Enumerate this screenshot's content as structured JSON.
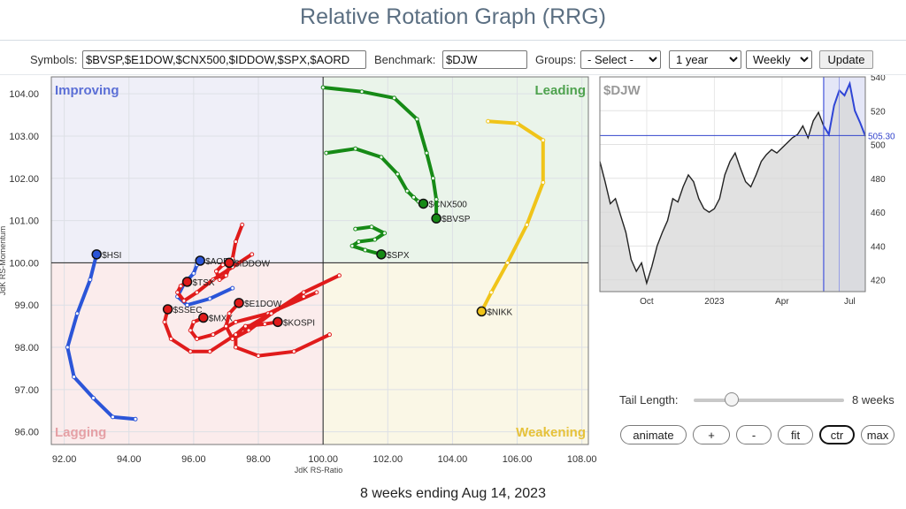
{
  "title": "Relative Rotation Graph (RRG)",
  "controls": {
    "symbols_label": "Symbols:",
    "symbols_value": "$BVSP,$E1DOW,$CNX500,$IDDOW,$SPX,$AORD",
    "benchmark_label": "Benchmark:",
    "benchmark_value": "$DJW",
    "groups_label": "Groups:",
    "groups_value": "- Select -",
    "period_value": "1 year",
    "frequency_value": "Weekly",
    "update_label": "Update"
  },
  "quadrants": {
    "improving": "Improving",
    "leading": "Leading",
    "lagging": "Lagging",
    "weakening": "Weakening"
  },
  "colors": {
    "improving": "#5b6fd6",
    "leading": "#4ea24e",
    "lagging": "#e5a0a5",
    "weakening": "#e6c23a",
    "green": "#168a16",
    "red": "#e01b1b",
    "blue": "#2b55d8",
    "yellow": "#f0c419"
  },
  "chart_data": [
    {
      "type": "scatter",
      "xlabel": "JdK RS-Ratio",
      "ylabel": "JdK RS-Momentum",
      "xlim": [
        91.6,
        108.2
      ],
      "ylim": [
        95.7,
        104.4
      ],
      "xticks": [
        "92.00",
        "94.00",
        "96.00",
        "98.00",
        "100.00",
        "102.00",
        "104.00",
        "106.00",
        "108.00"
      ],
      "yticks": [
        "96.00",
        "97.00",
        "98.00",
        "99.00",
        "100.00",
        "101.00",
        "102.00",
        "103.00",
        "104.00"
      ],
      "grid": true,
      "series": [
        {
          "name": "$HSI",
          "color": "blue",
          "points": [
            [
              94.2,
              96.3
            ],
            [
              93.5,
              96.35
            ],
            [
              92.9,
              96.8
            ],
            [
              92.3,
              97.3
            ],
            [
              92.1,
              98.0
            ],
            [
              92.4,
              98.8
            ],
            [
              92.8,
              99.6
            ],
            [
              93.0,
              100.2
            ]
          ]
        },
        {
          "name": "$AORD",
          "color": "blue",
          "points": [
            [
              97.2,
              99.4
            ],
            [
              96.5,
              99.15
            ],
            [
              95.8,
              99.0
            ],
            [
              95.5,
              99.2
            ],
            [
              95.7,
              99.5
            ],
            [
              96.0,
              99.75
            ],
            [
              96.1,
              99.95
            ],
            [
              96.2,
              100.05
            ]
          ]
        },
        {
          "name": "$TSX",
          "color": "red",
          "points": [
            [
              97.8,
              100.2
            ],
            [
              97.2,
              99.9
            ],
            [
              96.6,
              99.6
            ],
            [
              96.1,
              99.3
            ],
            [
              95.7,
              99.1
            ],
            [
              95.5,
              99.3
            ],
            [
              95.6,
              99.45
            ],
            [
              95.8,
              99.55
            ]
          ]
        },
        {
          "name": "$IDDOW",
          "color": "red",
          "points": [
            [
              97.5,
              100.9
            ],
            [
              97.3,
              100.5
            ],
            [
              97.2,
              100.1
            ],
            [
              97.0,
              99.7
            ],
            [
              96.8,
              99.6
            ],
            [
              96.7,
              99.8
            ],
            [
              96.9,
              99.95
            ],
            [
              97.1,
              100.0
            ]
          ]
        },
        {
          "name": "$SSEC",
          "color": "red",
          "points": [
            [
              99.8,
              99.3
            ],
            [
              98.6,
              98.9
            ],
            [
              97.5,
              98.4
            ],
            [
              96.5,
              97.9
            ],
            [
              95.9,
              97.9
            ],
            [
              95.3,
              98.2
            ],
            [
              95.1,
              98.6
            ],
            [
              95.2,
              98.9
            ]
          ]
        },
        {
          "name": "$MXX",
          "color": "red",
          "points": [
            [
              99.4,
              99.2
            ],
            [
              98.3,
              98.8
            ],
            [
              97.3,
              98.6
            ],
            [
              96.6,
              98.3
            ],
            [
              96.1,
              98.2
            ],
            [
              95.9,
              98.4
            ],
            [
              96.0,
              98.6
            ],
            [
              96.3,
              98.7
            ]
          ]
        },
        {
          "name": "$E1DOW",
          "color": "red",
          "points": [
            [
              100.5,
              99.7
            ],
            [
              99.4,
              99.3
            ],
            [
              98.4,
              98.8
            ],
            [
              97.7,
              98.4
            ],
            [
              97.2,
              98.2
            ],
            [
              97.0,
              98.5
            ],
            [
              97.1,
              98.8
            ],
            [
              97.4,
              99.05
            ]
          ]
        },
        {
          "name": "$KOSPI",
          "color": "red",
          "points": [
            [
              100.2,
              98.3
            ],
            [
              99.1,
              97.9
            ],
            [
              98.0,
              97.8
            ],
            [
              97.3,
              98.0
            ],
            [
              97.3,
              98.3
            ],
            [
              97.6,
              98.5
            ],
            [
              98.2,
              98.55
            ],
            [
              98.6,
              98.6
            ]
          ]
        },
        {
          "name": "$SPX",
          "color": "green",
          "points": [
            [
              101.0,
              100.8
            ],
            [
              101.5,
              100.85
            ],
            [
              101.9,
              100.7
            ],
            [
              101.6,
              100.55
            ],
            [
              101.1,
              100.5
            ],
            [
              100.9,
              100.4
            ],
            [
              101.3,
              100.3
            ],
            [
              101.8,
              100.2
            ]
          ]
        },
        {
          "name": "$CNX500",
          "color": "green",
          "points": [
            [
              100.1,
              102.6
            ],
            [
              101.0,
              102.7
            ],
            [
              101.8,
              102.5
            ],
            [
              102.3,
              102.1
            ],
            [
              102.6,
              101.7
            ],
            [
              102.8,
              101.55
            ],
            [
              102.95,
              101.45
            ],
            [
              103.1,
              101.4
            ]
          ]
        },
        {
          "name": "$BVSP",
          "color": "green",
          "points": [
            [
              100.0,
              104.15
            ],
            [
              101.2,
              104.05
            ],
            [
              102.2,
              103.9
            ],
            [
              102.9,
              103.4
            ],
            [
              103.2,
              102.6
            ],
            [
              103.4,
              102.0
            ],
            [
              103.5,
              101.5
            ],
            [
              103.5,
              101.05
            ]
          ]
        },
        {
          "name": "$NIKK",
          "color": "yellow",
          "points": [
            [
              105.1,
              103.35
            ],
            [
              106.0,
              103.3
            ],
            [
              106.8,
              102.9
            ],
            [
              106.8,
              101.9
            ],
            [
              106.3,
              100.9
            ],
            [
              105.7,
              100.0
            ],
            [
              105.2,
              99.3
            ],
            [
              104.9,
              98.85
            ]
          ]
        }
      ]
    },
    {
      "type": "area",
      "title": "$DJW",
      "ylim": [
        413,
        540
      ],
      "yticks": [
        "420",
        "440",
        "460",
        "480",
        "500",
        "520",
        "540"
      ],
      "xticks": [
        "Oct",
        "2023",
        "Apr",
        "Jul"
      ],
      "current_value": "505.30",
      "values": [
        490,
        478,
        465,
        468,
        458,
        448,
        432,
        425,
        430,
        418,
        428,
        440,
        448,
        455,
        468,
        466,
        475,
        482,
        478,
        468,
        462,
        460,
        462,
        468,
        482,
        490,
        495,
        486,
        478,
        475,
        482,
        490,
        494,
        497,
        495,
        498,
        501,
        504,
        506,
        511,
        504,
        514,
        519,
        511,
        506,
        523,
        532,
        529,
        536,
        520,
        513,
        505
      ]
    }
  ],
  "tail": {
    "label": "Tail Length:",
    "value": "8 weeks",
    "fraction": 0.25
  },
  "buttons": {
    "animate": "animate",
    "plus": "+",
    "minus": "-",
    "fit": "fit",
    "ctr": "ctr",
    "max": "max"
  },
  "caption": "8 weeks ending Aug 14, 2023"
}
